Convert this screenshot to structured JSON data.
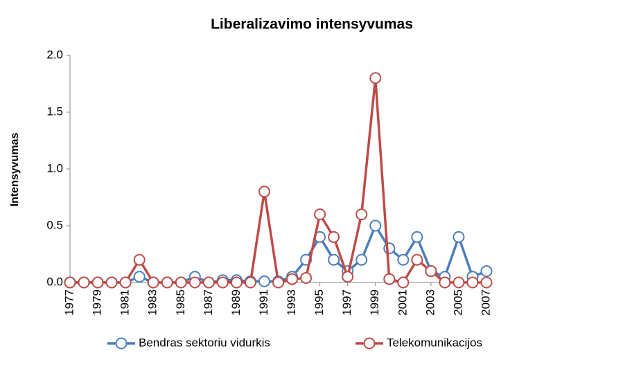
{
  "chart_data": {
    "type": "line",
    "title": "Liberalizavimo intensyvumas",
    "y_label": "Intensyvumas",
    "x": [
      1977,
      1978,
      1979,
      1980,
      1981,
      1982,
      1983,
      1984,
      1985,
      1986,
      1987,
      1988,
      1989,
      1990,
      1991,
      1992,
      1993,
      1994,
      1995,
      1996,
      1997,
      1998,
      1999,
      2000,
      2001,
      2002,
      2003,
      2004,
      2005,
      2006,
      2007
    ],
    "series": [
      {
        "name": "Bendras sektoriu vidurkis",
        "color": "#4a7ebb",
        "values": [
          0,
          0,
          0,
          0,
          0,
          0.05,
          0,
          0,
          0,
          0.05,
          0,
          0.02,
          0.02,
          0.01,
          0.01,
          0.01,
          0.05,
          0.2,
          0.4,
          0.2,
          0.1,
          0.2,
          0.5,
          0.3,
          0.2,
          0.4,
          0.1,
          0.05,
          0.4,
          0.05,
          0.1
        ]
      },
      {
        "name": "Telekomunikacijos",
        "color": "#be4b48",
        "values": [
          0,
          0,
          0,
          0,
          0,
          0.2,
          0,
          0,
          0,
          0,
          0,
          0,
          0,
          0,
          0.8,
          0,
          0.03,
          0.04,
          0.6,
          0.4,
          0.05,
          0.6,
          1.8,
          0.03,
          0,
          0.2,
          0.1,
          0,
          0,
          0,
          0
        ]
      }
    ],
    "xlim": [
      1977,
      2007
    ],
    "xticks": [
      1977,
      1979,
      1981,
      1983,
      1985,
      1987,
      1989,
      1991,
      1993,
      1995,
      1997,
      1999,
      2001,
      2003,
      2005,
      2007
    ],
    "ylim": [
      0,
      2
    ],
    "yticks": [
      {
        "value": 0,
        "label": "0.0"
      },
      {
        "value": 0.5,
        "label": "0.5"
      },
      {
        "value": 1,
        "label": "1.0"
      },
      {
        "value": 1.5,
        "label": "1.5"
      },
      {
        "value": 2,
        "label": "2.0"
      }
    ],
    "grid": false,
    "legend": "bottom"
  }
}
